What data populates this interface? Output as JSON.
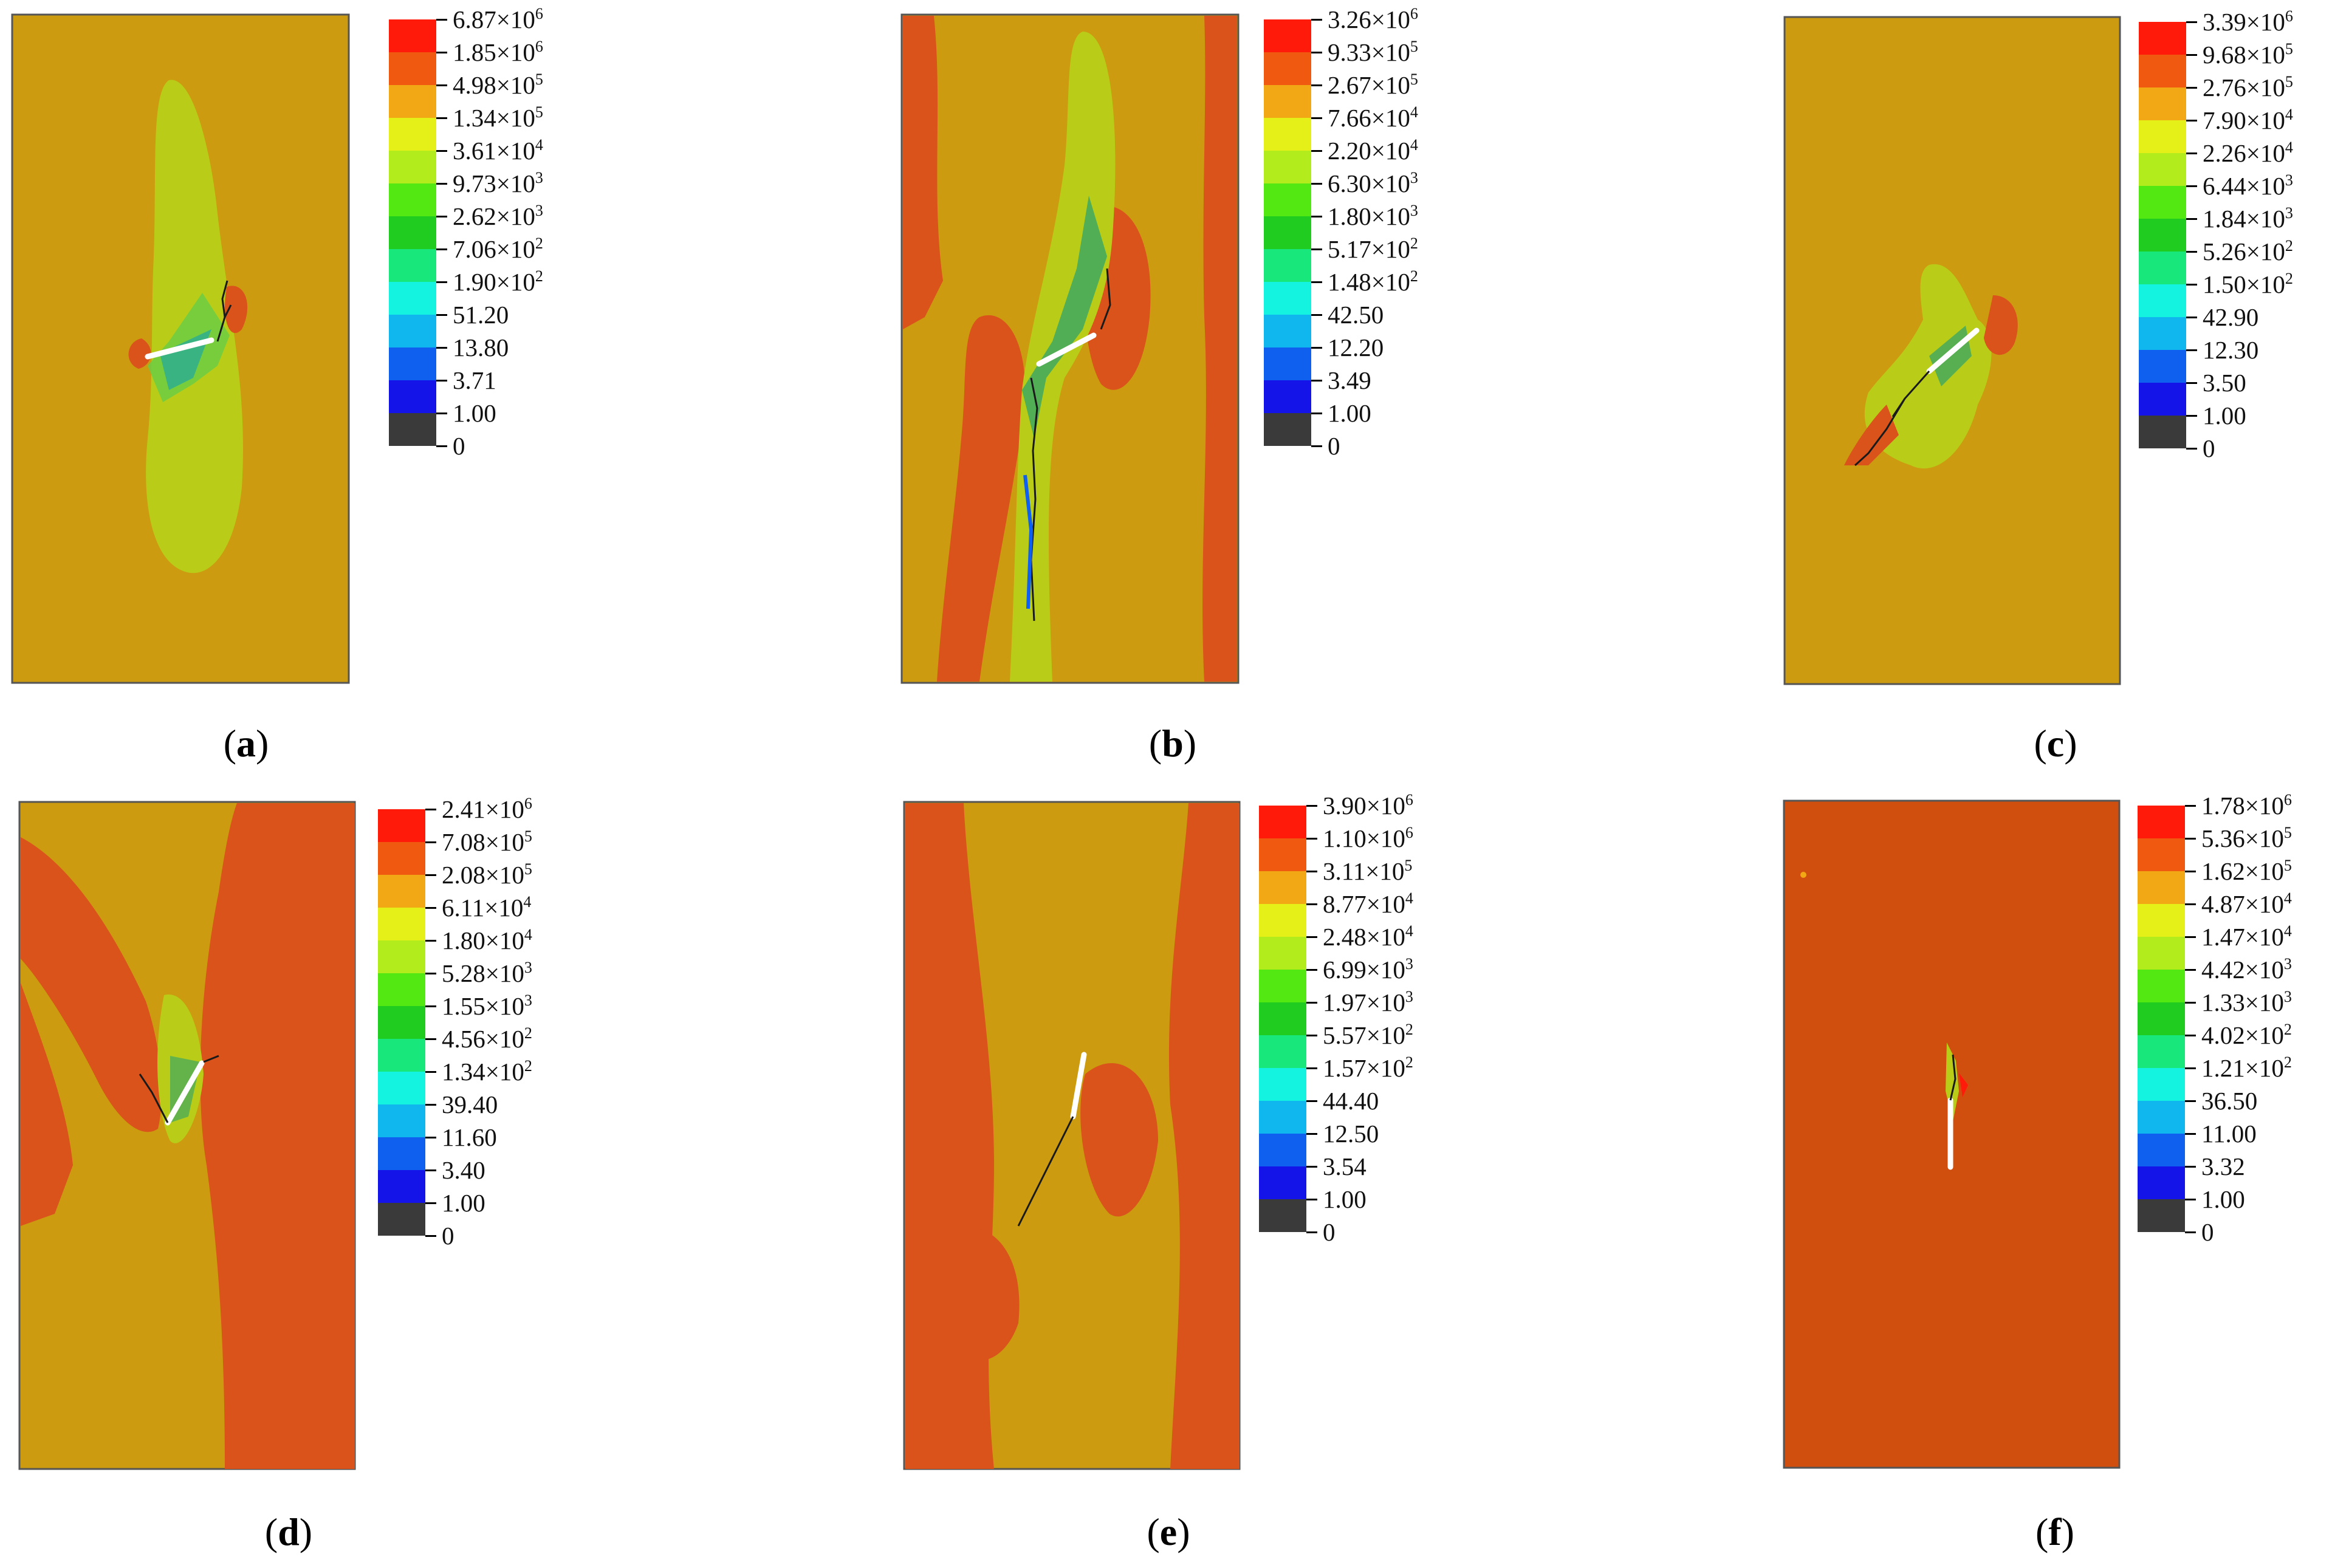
{
  "palette": [
    "#ff1a0a",
    "#f05a10",
    "#f2a814",
    "#e5f018",
    "#b2ec1c",
    "#54e812",
    "#20cc20",
    "#18e87c",
    "#14f2e0",
    "#10b6ee",
    "#1060f0",
    "#1414e8",
    "#3a3a3a"
  ],
  "panels": [
    {
      "caption": "a",
      "legend": [
        "6.87×10^6",
        "1.85×10^6",
        "4.98×10^5",
        "1.34×10^5",
        "3.61×10^4",
        "9.73×10^3",
        "2.62×10^3",
        "7.06×10^2",
        "1.90×10^2",
        "51.20",
        "13.80",
        "3.71",
        "1.00",
        "0"
      ]
    },
    {
      "caption": "b",
      "legend": [
        "3.26×10^6",
        "9.33×10^5",
        "2.67×10^5",
        "7.66×10^4",
        "2.20×10^4",
        "6.30×10^3",
        "1.80×10^3",
        "5.17×10^2",
        "1.48×10^2",
        "42.50",
        "12.20",
        "3.49",
        "1.00",
        "0"
      ]
    },
    {
      "caption": "c",
      "legend": [
        "3.39×10^6",
        "9.68×10^5",
        "2.76×10^5",
        "7.90×10^4",
        "2.26×10^4",
        "6.44×10^3",
        "1.84×10^3",
        "5.26×10^2",
        "1.50×10^2",
        "42.90",
        "12.30",
        "3.50",
        "1.00",
        "0"
      ]
    },
    {
      "caption": "d",
      "legend": [
        "2.41×10^6",
        "7.08×10^5",
        "2.08×10^5",
        "6.11×10^4",
        "1.80×10^4",
        "5.28×10^3",
        "1.55×10^3",
        "4.56×10^2",
        "1.34×10^2",
        "39.40",
        "11.60",
        "3.40",
        "1.00",
        "0"
      ]
    },
    {
      "caption": "e",
      "legend": [
        "3.90×10^6",
        "1.10×10^6",
        "3.11×10^5",
        "8.77×10^4",
        "2.48×10^4",
        "6.99×10^3",
        "1.97×10^3",
        "5.57×10^2",
        "1.57×10^2",
        "44.40",
        "12.50",
        "3.54",
        "1.00",
        "0"
      ]
    },
    {
      "caption": "f",
      "legend": [
        "1.78×10^6",
        "5.36×10^5",
        "1.62×10^5",
        "4.87×10^4",
        "1.47×10^4",
        "4.42×10^3",
        "1.33×10^3",
        "4.02×10^2",
        "1.21×10^2",
        "36.50",
        "11.00",
        "3.32",
        "1.00",
        "0"
      ]
    }
  ]
}
